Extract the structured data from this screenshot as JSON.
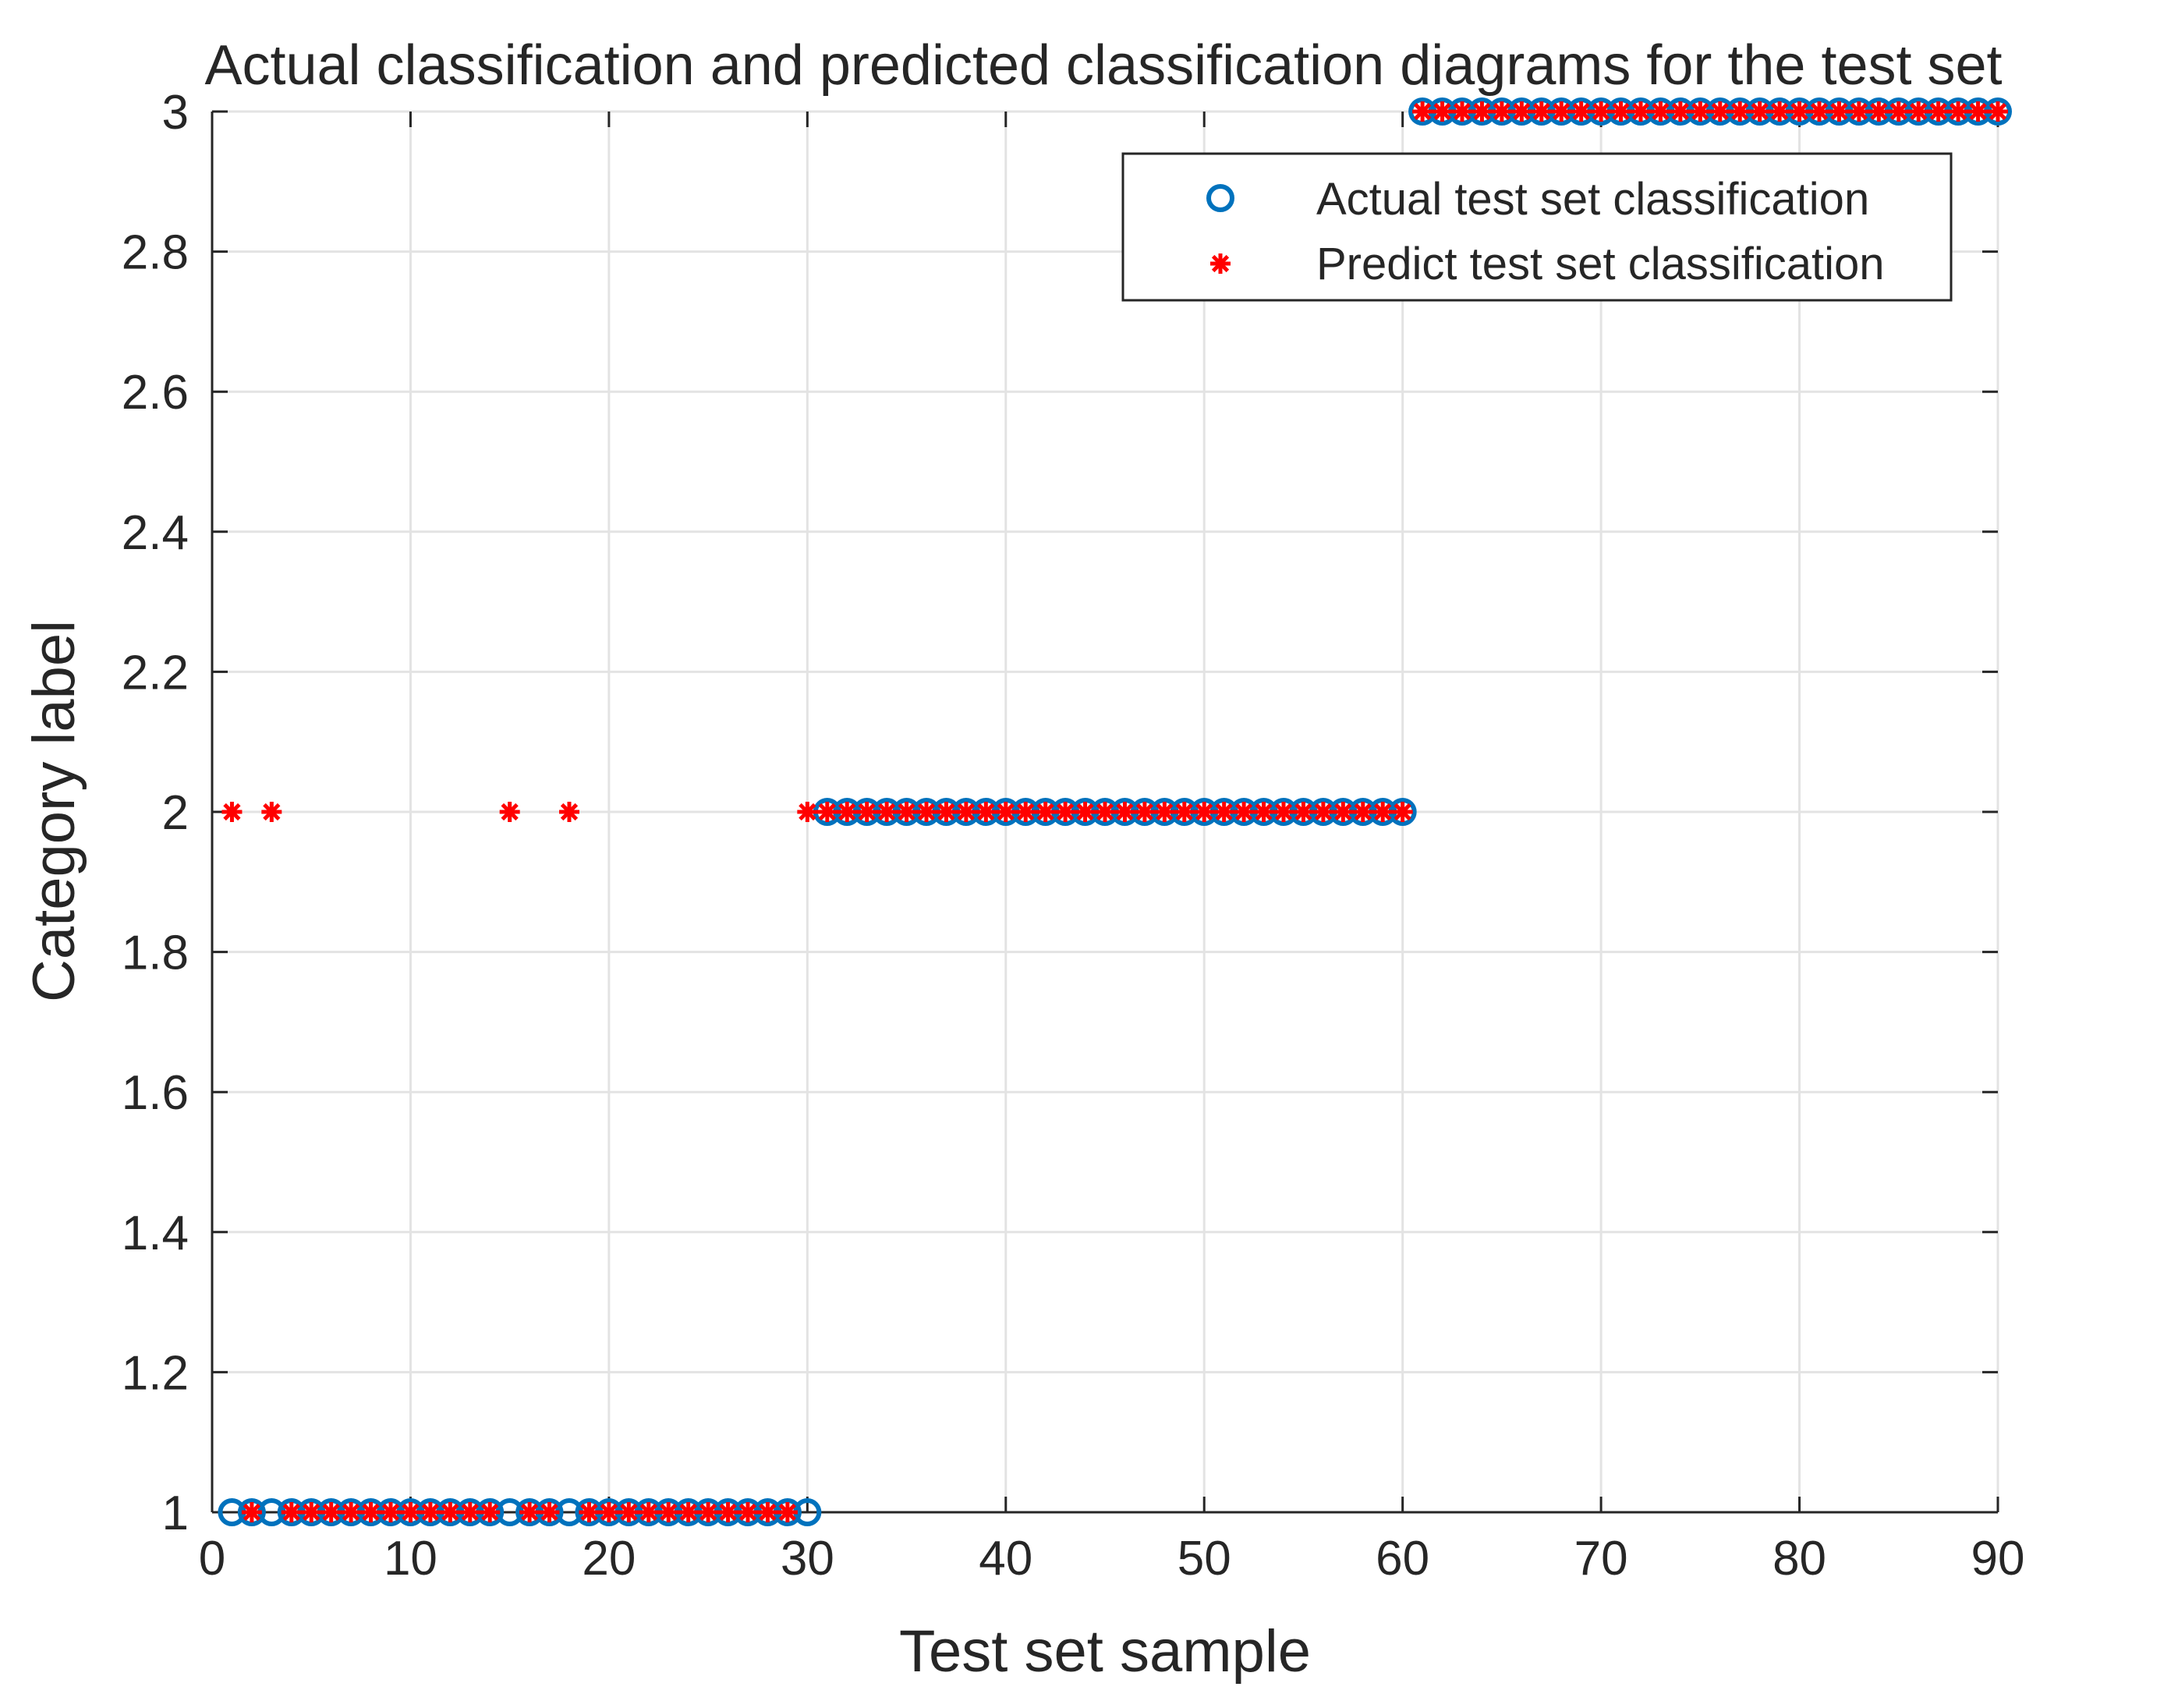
{
  "chart_data": {
    "type": "scatter",
    "title": "Actual classification and predicted classification diagrams for the test set",
    "xlabel": "Test set sample",
    "ylabel": "Category label",
    "xlim": [
      0,
      90
    ],
    "ylim": [
      1,
      3
    ],
    "xticks": [
      0,
      10,
      20,
      30,
      40,
      50,
      60,
      70,
      80,
      90
    ],
    "yticks": [
      1,
      1.2,
      1.4,
      1.6,
      1.8,
      2,
      2.2,
      2.4,
      2.6,
      2.8,
      3
    ],
    "ytick_labels": [
      "1",
      "1.2",
      "1.4",
      "1.6",
      "1.8",
      "2",
      "2.2",
      "2.4",
      "2.6",
      "2.8",
      "3"
    ],
    "grid": true,
    "legend_position": "top-right",
    "series": [
      {
        "name": "Actual test set classification",
        "marker": "circle",
        "color": "#0072BD",
        "segments": [
          {
            "x_from": 1,
            "x_to": 30,
            "y": 1
          },
          {
            "x_from": 31,
            "x_to": 60,
            "y": 2
          },
          {
            "x_from": 61,
            "x_to": 90,
            "y": 3
          }
        ]
      },
      {
        "name": "Predict test set classification",
        "marker": "asterisk",
        "color": "#FF0000",
        "segments": [
          {
            "x_from": 1,
            "x_to": 30,
            "y": 1,
            "except": [
              1,
              3,
              15,
              18,
              30
            ]
          },
          {
            "x_from": 30,
            "x_to": 60,
            "y": 2
          },
          {
            "x_from": 61,
            "x_to": 90,
            "y": 3
          }
        ],
        "points": [
          {
            "x": 1,
            "y": 2
          },
          {
            "x": 3,
            "y": 2
          },
          {
            "x": 15,
            "y": 2
          },
          {
            "x": 18,
            "y": 2
          }
        ]
      }
    ]
  }
}
